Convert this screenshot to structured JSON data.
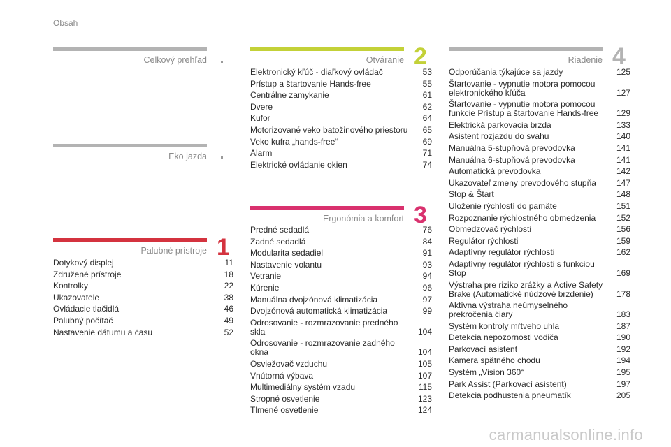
{
  "header": "Obsah",
  "colors": {
    "gray": "#b3b3b3",
    "red": "#d4333f",
    "lime": "#c3d138",
    "pink": "#d9316e"
  },
  "sections": {
    "prehlad": {
      "title": "Celkový prehľad"
    },
    "eko": {
      "title": "Eko jazda"
    },
    "palubne": {
      "title": "Palubné prístroje",
      "number": "1",
      "items": [
        {
          "t": "Dotykový displej",
          "p": "11"
        },
        {
          "t": "Združené prístroje",
          "p": "18"
        },
        {
          "t": "Kontrolky",
          "p": "22"
        },
        {
          "t": "Ukazovatele",
          "p": "38"
        },
        {
          "t": "Ovládacie tlačidlá",
          "p": "46"
        },
        {
          "t": "Palubný počítač",
          "p": "49"
        },
        {
          "t": "Nastavenie dátumu a času",
          "p": "52"
        }
      ]
    },
    "otvaranie": {
      "title": "Otváranie",
      "number": "2",
      "items": [
        {
          "t": "Elektronický kľúč - diaľkový ovládač",
          "p": "53"
        },
        {
          "t": "Prístup a štartovanie Hands-free",
          "p": "55"
        },
        {
          "t": "Centrálne zamykanie",
          "p": "61"
        },
        {
          "t": "Dvere",
          "p": "62"
        },
        {
          "t": "Kufor",
          "p": "64"
        },
        {
          "t": "Motorizované veko batožinového priestoru",
          "p": "65"
        },
        {
          "t": "Veko kufra „hands-free“",
          "p": "69"
        },
        {
          "t": "Alarm",
          "p": "71"
        },
        {
          "t": "Elektrické ovládanie okien",
          "p": "74"
        }
      ]
    },
    "ergonomia": {
      "title": "Ergonómia a komfort",
      "number": "3",
      "items": [
        {
          "t": "Predné sedadlá",
          "p": "76"
        },
        {
          "t": "Zadné sedadlá",
          "p": "84"
        },
        {
          "t": "Modularita sedadiel",
          "p": "91"
        },
        {
          "t": "Nastavenie volantu",
          "p": "93"
        },
        {
          "t": "Vetranie",
          "p": "94"
        },
        {
          "t": "Kúrenie",
          "p": "96"
        },
        {
          "t": "Manuálna dvojzónová klimatizácia",
          "p": "97"
        },
        {
          "t": "Dvojzónová automatická klimatizácia",
          "p": "99"
        },
        {
          "t": "Odrosovanie - rozmrazovanie predného\nskla",
          "p": "104"
        },
        {
          "t": "Odrosovanie - rozmrazovanie zadného\nokna",
          "p": "104"
        },
        {
          "t": "Osviežovač vzduchu",
          "p": "105"
        },
        {
          "t": "Vnútorná výbava",
          "p": "107"
        },
        {
          "t": "Multimediálny systém vzadu",
          "p": "115"
        },
        {
          "t": "Stropné osvetlenie",
          "p": "123"
        },
        {
          "t": "Tlmené osvetlenie",
          "p": "124"
        }
      ]
    },
    "riadenie": {
      "title": "Riadenie",
      "number": "4",
      "items": [
        {
          "t": "Odporúčania týkajúce sa jazdy",
          "p": "125"
        },
        {
          "t": "Štartovanie - vypnutie motora pomocou\nelektronického kľúča",
          "p": "127"
        },
        {
          "t": "Štartovanie - vypnutie motora pomocou\nfunkcie Prístup a štartovanie Hands-free",
          "p": "129"
        },
        {
          "t": "Elektrická parkovacia brzda",
          "p": "133"
        },
        {
          "t": "Asistent rozjazdu do svahu",
          "p": "140"
        },
        {
          "t": "Manuálna 5-stupňová prevodovka",
          "p": "141"
        },
        {
          "t": "Manuálna 6-stupňová prevodovka",
          "p": "141"
        },
        {
          "t": "Automatická prevodovka",
          "p": "142"
        },
        {
          "t": "Ukazovateľ zmeny prevodového stupňa",
          "p": "147"
        },
        {
          "t": "Stop & Štart",
          "p": "148"
        },
        {
          "t": "Uloženie rýchlostí do pamäte",
          "p": "151"
        },
        {
          "t": "Rozpoznanie rýchlostného obmedzenia",
          "p": "152"
        },
        {
          "t": "Obmedzovač rýchlosti",
          "p": "156"
        },
        {
          "t": "Regulátor rýchlosti",
          "p": "159"
        },
        {
          "t": "Adaptívny regulátor rýchlosti",
          "p": "162"
        },
        {
          "t": "Adaptívny regulátor rýchlosti s funkciou\nStop",
          "p": "169"
        },
        {
          "t": "Výstraha pre riziko zrážky a Active Safety\nBrake (Automatické núdzové brzdenie)",
          "p": "178"
        },
        {
          "t": "Aktívna výstraha neúmyselného\nprekročenia čiary",
          "p": "183"
        },
        {
          "t": "Systém kontroly mŕtveho uhla",
          "p": "187"
        },
        {
          "t": "Detekcia nepozornosti vodiča",
          "p": "190"
        },
        {
          "t": "Parkovací asistent",
          "p": "192"
        },
        {
          "t": "Kamera spätného chodu",
          "p": "194"
        },
        {
          "t": "Systém „Vision 360“",
          "p": "195"
        },
        {
          "t": "Park Assist (Parkovací asistent)",
          "p": "197"
        },
        {
          "t": "Detekcia podhustenia pneumatík",
          "p": "205"
        }
      ]
    }
  },
  "watermark": "carmanualsonline.info"
}
